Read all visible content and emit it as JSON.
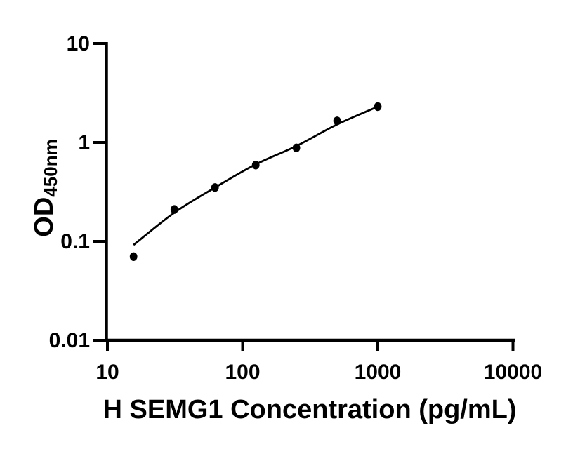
{
  "figure": {
    "background_color": "#ffffff",
    "foreground_color": "#000000"
  },
  "chart_data": {
    "type": "scatter",
    "title": "",
    "xlabel": "H SEMG1 Concentration (pg/mL)",
    "ylabel": "OD",
    "ylabel_subscript": "450nm",
    "x_scale": "log",
    "y_scale": "log",
    "xlim": [
      10,
      10000
    ],
    "ylim": [
      0.01,
      10
    ],
    "x_ticks": [
      10,
      100,
      1000,
      10000
    ],
    "x_tick_labels": [
      "10",
      "100",
      "1000",
      "10000"
    ],
    "y_ticks": [
      10,
      1,
      0.1,
      0.01
    ],
    "y_tick_labels": [
      "10",
      "1",
      "0.1",
      "0.01"
    ],
    "grid": false,
    "legend_position": "none",
    "marker_color": "#000000",
    "line_color": "#000000",
    "series": [
      {
        "name": "standard-data-points",
        "type": "scatter",
        "marker": "filled-circle",
        "x": [
          15.6,
          31.25,
          62.5,
          125,
          250,
          500,
          1000
        ],
        "y": [
          0.07,
          0.21,
          0.35,
          0.59,
          0.88,
          1.65,
          2.3
        ]
      },
      {
        "name": "fitted-standard-curve",
        "type": "line",
        "x": [
          15.6,
          31.25,
          62.5,
          125,
          250,
          500,
          1000
        ],
        "y": [
          0.092,
          0.195,
          0.35,
          0.6,
          0.92,
          1.52,
          2.3
        ]
      }
    ]
  }
}
